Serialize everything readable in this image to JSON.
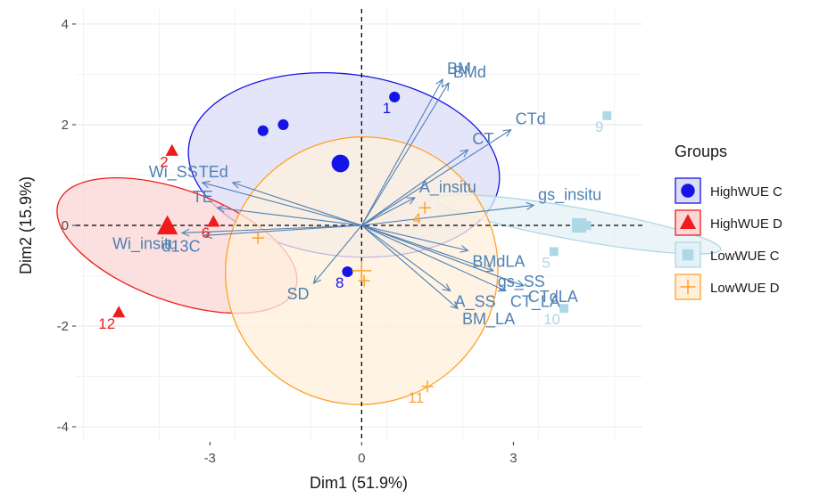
{
  "chart_data": {
    "type": "scatter",
    "subtype": "PCA biplot",
    "xlabel": "Dim1 (51.9%)",
    "ylabel": "Dim2 (15.9%)",
    "xlim": [
      -5.65,
      5.55
    ],
    "ylim": [
      -4.3,
      4.3
    ],
    "xticks": [
      -3,
      0,
      3
    ],
    "xtick_labels": [
      "-3",
      "0",
      "3"
    ],
    "yticks": [
      -4,
      -2,
      0,
      2,
      4
    ],
    "ytick_labels": [
      "-4",
      "-2",
      "0",
      "2",
      "4"
    ],
    "grid": true,
    "reference_lines": {
      "x": 0,
      "y": 0,
      "style": "dashed"
    },
    "legend": {
      "title": "Groups",
      "position": "right",
      "entries": [
        {
          "label": "HighWUE C",
          "color": "#1414e6",
          "fill": "#dcdcf7",
          "shape": "circle"
        },
        {
          "label": "HighWUE D",
          "color": "#ee1c1c",
          "fill": "#fbd6d6",
          "shape": "triangle"
        },
        {
          "label": "LowWUE C",
          "color": "#add8e6",
          "fill": "#e4f1f6",
          "shape": "square"
        },
        {
          "label": "LowWUE D",
          "color": "#ffa12a",
          "fill": "#fff0db",
          "shape": "cross"
        }
      ]
    },
    "groups": [
      {
        "name": "HighWUE C",
        "color": "#1414e6",
        "fill": "#dcdcf7",
        "shape": "circle",
        "points": [
          {
            "label": "1",
            "x": 0.65,
            "y": 2.55
          },
          {
            "label": "",
            "x": -1.55,
            "y": 2.0
          },
          {
            "label": "",
            "x": -1.95,
            "y": 1.88
          },
          {
            "label": "8",
            "x": -0.28,
            "y": -0.92
          }
        ],
        "mean": {
          "x": -0.42,
          "y": 1.23
        },
        "ellipse": {
          "cx": -0.35,
          "cy": 1.2,
          "rx": 1.8,
          "ry": 3.1,
          "angle": 97
        }
      },
      {
        "name": "HighWUE D",
        "color": "#ee1c1c",
        "fill": "#fbd6d6",
        "shape": "triangle",
        "points": [
          {
            "label": "2",
            "x": -3.75,
            "y": 1.48
          },
          {
            "label": "6",
            "x": -2.93,
            "y": 0.07
          },
          {
            "label": "12",
            "x": -4.8,
            "y": -1.73
          }
        ],
        "mean": {
          "x": -3.84,
          "y": -0.02
        },
        "ellipse": {
          "cx": -3.65,
          "cy": -0.4,
          "rx": 1.1,
          "ry": 2.5,
          "angle": 110
        }
      },
      {
        "name": "LowWUE C",
        "color": "#add8e6",
        "fill": "#e4f1f6",
        "shape": "square",
        "points": [
          {
            "label": "9",
            "x": 4.85,
            "y": 2.18
          },
          {
            "label": "5",
            "x": 3.8,
            "y": -0.52
          },
          {
            "label": "10",
            "x": 4.0,
            "y": -1.65
          },
          {
            "label": "",
            "x": 4.45,
            "y": 0.0
          }
        ],
        "mean": {
          "x": 4.3,
          "y": 0.0
        },
        "ellipse": {
          "cx": 4.3,
          "cy": 0.02,
          "rx": 0.32,
          "ry": 2.85,
          "angle": 100
        }
      },
      {
        "name": "LowWUE D",
        "color": "#ffa12a",
        "fill": "#fff0db",
        "shape": "cross",
        "points": [
          {
            "label": "4",
            "x": 1.25,
            "y": 0.35
          },
          {
            "label": "11",
            "x": 1.3,
            "y": -3.2
          },
          {
            "label": "",
            "x": 0.05,
            "y": -1.1
          },
          {
            "label": "",
            "x": -2.05,
            "y": -0.25
          }
        ],
        "mean": {
          "x": 0.0,
          "y": -0.9
        },
        "ellipse": {
          "cx": 0.0,
          "cy": -0.9,
          "rx": 2.7,
          "ry": 2.65,
          "angle": -20
        }
      }
    ],
    "variables": [
      {
        "name": "BM",
        "x": 1.6,
        "y": 2.9
      },
      {
        "name": "BMd",
        "x": 1.72,
        "y": 2.83
      },
      {
        "name": "CTd",
        "x": 2.95,
        "y": 1.9
      },
      {
        "name": "CT",
        "x": 2.1,
        "y": 1.5
      },
      {
        "name": "A_insitu",
        "x": 1.05,
        "y": 0.55
      },
      {
        "name": "gs_insitu",
        "x": 3.4,
        "y": 0.4
      },
      {
        "name": "BMdLA",
        "x": 2.1,
        "y": -0.5
      },
      {
        "name": "gs_SS",
        "x": 2.6,
        "y": -0.9
      },
      {
        "name": "CTdLA",
        "x": 3.2,
        "y": -1.2
      },
      {
        "name": "A_SS",
        "x": 1.75,
        "y": -1.3
      },
      {
        "name": "CT_LA",
        "x": 2.85,
        "y": -1.3
      },
      {
        "name": "BM_LA",
        "x": 1.9,
        "y": -1.65
      },
      {
        "name": "TEd",
        "x": -2.55,
        "y": 0.85
      },
      {
        "name": "Wi_SS",
        "x": -3.15,
        "y": 0.85
      },
      {
        "name": "TE",
        "x": -2.85,
        "y": 0.35
      },
      {
        "name": "d13C",
        "x": -3.1,
        "y": -0.2
      },
      {
        "name": "Wi_insitu",
        "x": -3.55,
        "y": -0.15
      },
      {
        "name": "SD",
        "x": -0.95,
        "y": -1.15
      }
    ]
  }
}
